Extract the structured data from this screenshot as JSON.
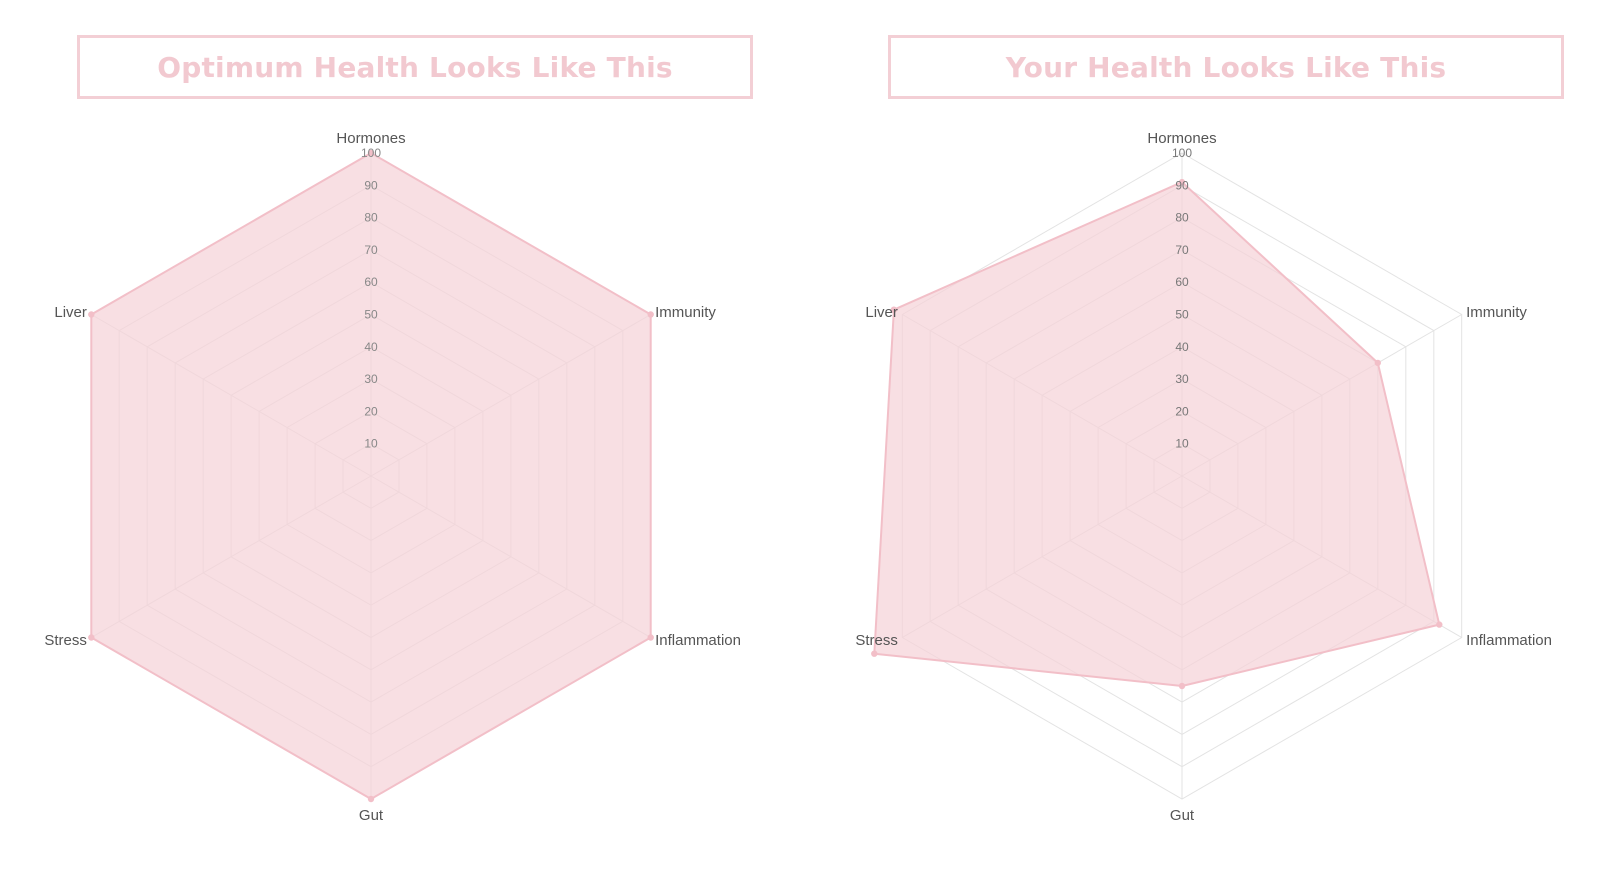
{
  "chart_data": [
    {
      "type": "radar",
      "title": "Optimum Health Looks Like This",
      "categories": [
        "Hormones",
        "Immunity",
        "Inflammation",
        "Gut",
        "Stress",
        "Liver"
      ],
      "series": [
        {
          "values": [
            100,
            100,
            100,
            100,
            100,
            100
          ]
        }
      ],
      "rlim": [
        0,
        100
      ],
      "ticks": [
        10,
        20,
        30,
        40,
        50,
        60,
        70,
        80,
        90,
        100
      ],
      "grid": true,
      "legend": "none",
      "colors": {
        "fill": "#f5d2d8",
        "stroke": "#f2bfc8",
        "grid": "#e3e3e3",
        "title": "#f2c9d0",
        "title_border": "#f3cfd5"
      }
    },
    {
      "type": "radar",
      "title": "Your Health Looks Like This",
      "categories": [
        "Hormones",
        "Immunity",
        "Inflammation",
        "Gut",
        "Stress",
        "Liver"
      ],
      "series": [
        {
          "values": [
            91,
            70,
            92,
            65,
            110,
            103
          ]
        }
      ],
      "rlim": [
        0,
        100
      ],
      "ticks": [
        10,
        20,
        30,
        40,
        50,
        60,
        70,
        80,
        90,
        100
      ],
      "grid": true,
      "legend": "none",
      "colors": {
        "fill": "#f5d2d8",
        "stroke": "#f2bfc8",
        "grid": "#e3e3e3",
        "title": "#f2c9d0",
        "title_border": "#f3cfd5"
      }
    }
  ]
}
